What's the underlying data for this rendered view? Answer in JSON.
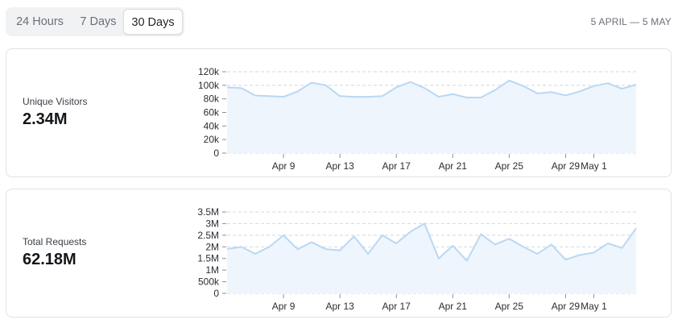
{
  "time_filter": {
    "options": [
      "24 Hours",
      "7 Days",
      "30 Days"
    ],
    "selected": "30 Days"
  },
  "date_range": "5 APRIL — 5 MAY",
  "colors": {
    "line": "#b9d8f4",
    "fill": "#eef5fd",
    "grid": "#d4d7dc",
    "axis_text": "#2a2e33"
  },
  "cards": [
    {
      "label": "Unique Visitors",
      "value": "2.34M"
    },
    {
      "label": "Total Requests",
      "value": "62.18M"
    }
  ],
  "chart_data": [
    {
      "type": "area",
      "x_tick_labels": [
        "Apr 9",
        "Apr 13",
        "Apr 17",
        "Apr 21",
        "Apr 25",
        "Apr 29",
        "May 1"
      ],
      "x_tick_index": [
        4,
        8,
        12,
        16,
        20,
        24,
        26
      ],
      "y_tick_labels": [
        "0",
        "20k",
        "40k",
        "60k",
        "80k",
        "100k",
        "120k"
      ],
      "y_ticks": [
        0,
        20000,
        40000,
        60000,
        80000,
        100000,
        120000
      ],
      "ylim": [
        0,
        120000
      ],
      "grid": true,
      "series": [
        {
          "values": [
            97000,
            96000,
            85000,
            84000,
            83000,
            91000,
            104000,
            100000,
            84000,
            83000,
            83000,
            84000,
            97000,
            105000,
            96000,
            83000,
            87000,
            82000,
            82000,
            93000,
            107000,
            99000,
            88000,
            90000,
            85000,
            91000,
            99000,
            103000,
            95000,
            101000
          ]
        }
      ]
    },
    {
      "type": "area",
      "x_tick_labels": [
        "Apr 9",
        "Apr 13",
        "Apr 17",
        "Apr 21",
        "Apr 25",
        "Apr 29",
        "May 1"
      ],
      "x_tick_index": [
        4,
        8,
        12,
        16,
        20,
        24,
        26
      ],
      "y_tick_labels": [
        "0",
        "500k",
        "1M",
        "1.5M",
        "2M",
        "2.5M",
        "3M",
        "3.5M"
      ],
      "y_ticks": [
        0,
        500000,
        1000000,
        1500000,
        2000000,
        2500000,
        3000000,
        3500000
      ],
      "ylim": [
        0,
        3500000
      ],
      "grid": true,
      "series": [
        {
          "values": [
            1900000,
            2000000,
            1700000,
            2000000,
            2500000,
            1900000,
            2200000,
            1900000,
            1850000,
            2450000,
            1700000,
            2500000,
            2150000,
            2650000,
            3000000,
            1500000,
            2050000,
            1400000,
            2550000,
            2100000,
            2350000,
            2000000,
            1700000,
            2100000,
            1450000,
            1650000,
            1750000,
            2150000,
            1950000,
            2800000
          ]
        }
      ]
    }
  ]
}
